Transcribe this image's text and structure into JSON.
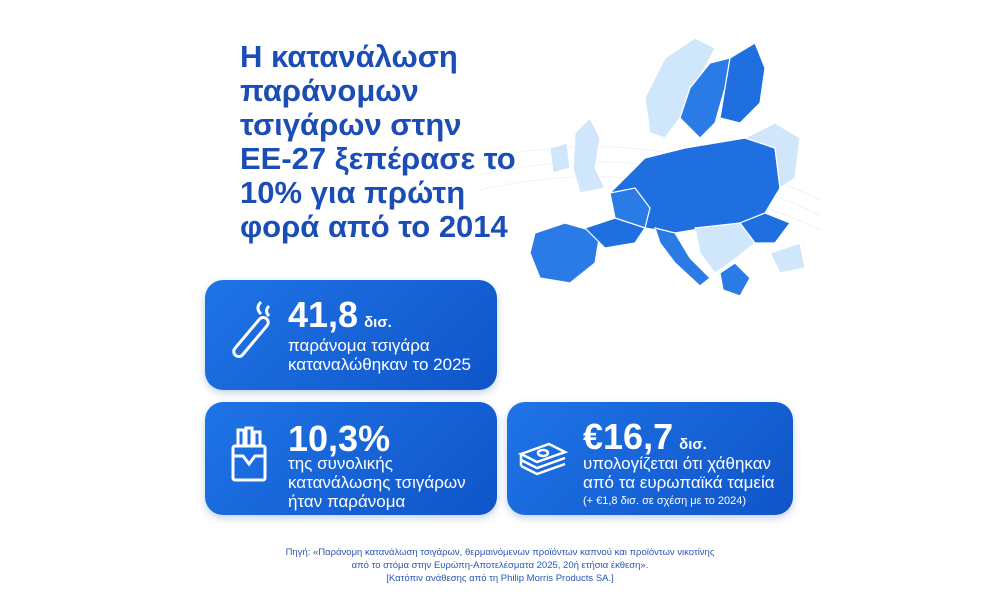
{
  "title_lines": [
    "Η κατανάλωση",
    "παράνομων",
    "τσιγάρων στην",
    "ΕΕ-27 ξεπέρασε το",
    "10% για πρώτη",
    "φορά από το 2014"
  ],
  "cards": [
    {
      "value": "41,8",
      "unit": "δισ.",
      "lines": [
        "παράνομα τσιγάρα",
        "καταναλώθηκαν το 2025"
      ]
    },
    {
      "value": "10,3%",
      "lines": [
        "της συνολικής",
        "κατανάλωσης τσιγάρων",
        "ήταν παράνομα"
      ]
    },
    {
      "value": "€16,7",
      "unit": "δισ.",
      "lines": [
        "υπολογίζεται ότι χάθηκαν",
        "από τα ευρωπαϊκά ταμεία"
      ],
      "note": "(+ €1,8 δισ. σε σχέση με το 2024)"
    }
  ],
  "source_lines": [
    "Πηγή: «Παράνομη κατανάλωση τσιγάρων, θερμαινόμενων προϊόντων καπνού και προϊόντων νικοτίνης",
    "από το στόμα στην Ευρώπη-Αποτελέσματα 2025, 20ή ετήσια έκθεση».",
    "[Κατόπιν ανάθεσης από τη Philip Morris Products SA.]"
  ]
}
